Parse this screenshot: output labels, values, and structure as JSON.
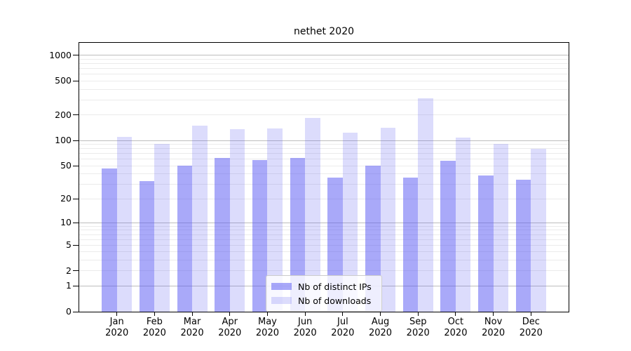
{
  "window": {
    "title": "nethet 2020"
  },
  "chart_data": {
    "type": "bar",
    "title": "nethet 2020",
    "categories": [
      "Jan",
      "Feb",
      "Mar",
      "Apr",
      "May",
      "Jun",
      "Jul",
      "Aug",
      "Sep",
      "Oct",
      "Nov",
      "Dec"
    ],
    "category_year": "2020",
    "series": [
      {
        "name": "Nb of distinct IPs",
        "color": "rgba(90,90,243,0.52)",
        "solid_color": "#a9a9f8",
        "values": [
          46,
          33,
          50,
          62,
          58,
          62,
          36,
          50,
          36,
          57,
          38,
          34
        ]
      },
      {
        "name": "Nb of downloads",
        "color": "rgba(90,90,243,0.21)",
        "solid_color": "#dcdcfc",
        "values": [
          110,
          91,
          150,
          135,
          138,
          183,
          123,
          142,
          316,
          107,
          91,
          79
        ]
      }
    ],
    "xlabel": "",
    "ylabel": "",
    "yscale": "symlog",
    "yticks": [
      0,
      1,
      2,
      5,
      10,
      20,
      50,
      100,
      200,
      500,
      1000
    ],
    "ylim": [
      0,
      1400
    ],
    "grid": "horizontal major and minor, on",
    "grid_major_color": "#bdbdbd",
    "grid_minor_color": "#ebebeb",
    "legend_position": "inside bottom-center",
    "axis_color": "#000000",
    "background_color": "#ffffff"
  }
}
